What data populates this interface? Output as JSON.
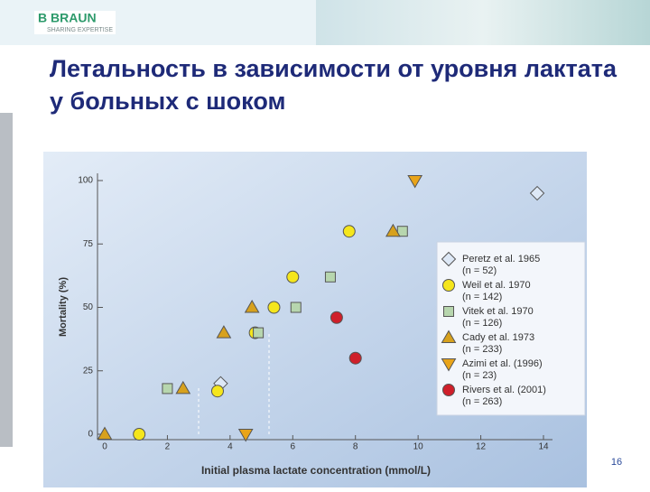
{
  "header": {
    "logo": "B BRAUN",
    "tagline": "SHARING EXPERTISE"
  },
  "page_number": "16",
  "chart_data": {
    "type": "scatter",
    "title": "Летальность в зависимости от уровня лактата у больных с шоком",
    "x_label": "Initial plasma lactate concentration (mmol/L)",
    "y_label": "Mortality (%)",
    "xlim": [
      0,
      14
    ],
    "ylim": [
      0,
      100
    ],
    "xticks": [
      0,
      2,
      4,
      6,
      8,
      10,
      12,
      14
    ],
    "yticks": [
      0,
      25,
      50,
      75,
      100
    ],
    "series": [
      {
        "name": "Peretz et al. 1965",
        "n": "(n = 52)",
        "marker": "diamond",
        "color": "#dde8f6",
        "x": [
          3.7,
          13.8
        ],
        "values": [
          20,
          95
        ]
      },
      {
        "name": "Weil et al. 1970",
        "n": "(n = 142)",
        "marker": "circle",
        "color": "#f5e61c",
        "x": [
          1.1,
          3.6,
          4.8,
          5.4,
          6.0,
          7.8
        ],
        "values": [
          0,
          17,
          40,
          50,
          62,
          80
        ]
      },
      {
        "name": "Vitek et al. 1970",
        "n": "(n = 126)",
        "marker": "square",
        "color": "#b7d6ae",
        "x": [
          2.0,
          4.9,
          6.1,
          7.2,
          9.5
        ],
        "values": [
          18,
          40,
          50,
          62,
          80
        ]
      },
      {
        "name": "Cady et al. 1973",
        "n": "(n = 233)",
        "marker": "triangle-up",
        "color": "#d7a11d",
        "x": [
          0,
          2.5,
          3.8,
          4.7,
          9.2
        ],
        "values": [
          0,
          18,
          40,
          50,
          80
        ]
      },
      {
        "name": "Azimi et al. (1996)",
        "n": "(n = 23)",
        "marker": "triangle-down",
        "color": "#e9a419",
        "x": [
          4.5,
          9.9
        ],
        "values": [
          0,
          100
        ]
      },
      {
        "name": "Rivers et al. (2001)",
        "n": "(n = 263)",
        "marker": "circle",
        "color": "#cf1f2a",
        "x": [
          7.4,
          8.0
        ],
        "values": [
          46,
          30
        ]
      }
    ]
  }
}
